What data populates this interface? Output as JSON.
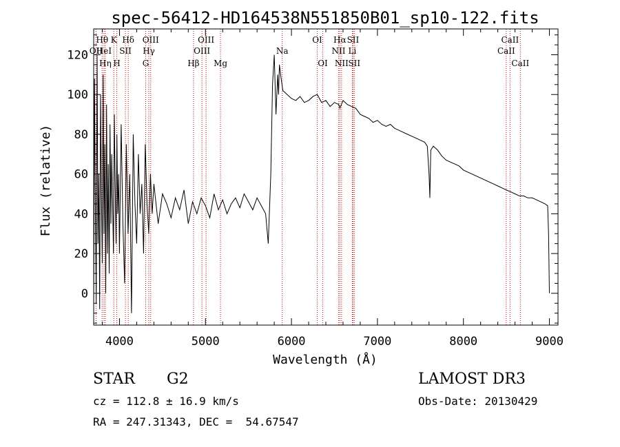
{
  "chart_data": {
    "type": "line",
    "title": "spec-56412-HD164538N551850B01_sp10-122.fits",
    "xlabel": "Wavelength (Å)",
    "ylabel": "Flux (relative)",
    "xlim": [
      3700,
      9100
    ],
    "ylim": [
      -16,
      133
    ],
    "xticks": [
      4000,
      5000,
      6000,
      7000,
      8000,
      9000
    ],
    "yticks": [
      0,
      20,
      40,
      60,
      80,
      100,
      120
    ],
    "line_color": "#000000",
    "marker_color": "#cc0000",
    "series": [
      {
        "x": [
          3700,
          3710,
          3720,
          3730,
          3740,
          3750,
          3760,
          3770,
          3780,
          3790,
          3800,
          3810,
          3820,
          3830,
          3840,
          3850,
          3860,
          3870,
          3880,
          3890,
          3900,
          3910,
          3920,
          3930,
          3940,
          3950,
          3960,
          3970,
          3980,
          3990,
          4000,
          4020,
          4040,
          4060,
          4080,
          4100,
          4120,
          4140,
          4160,
          4180,
          4200,
          4220,
          4240,
          4260,
          4280,
          4300,
          4320,
          4340,
          4360,
          4380,
          4400,
          4450,
          4500,
          4550,
          4600,
          4650,
          4700,
          4750,
          4800,
          4850,
          4900,
          4950,
          5000,
          5050,
          5100,
          5150,
          5200,
          5250,
          5300,
          5350,
          5400,
          5450,
          5500,
          5550,
          5600,
          5650,
          5700,
          5730,
          5760,
          5780,
          5800,
          5820,
          5840,
          5850,
          5860,
          5880,
          5900,
          5950,
          6000,
          6050,
          6100,
          6150,
          6200,
          6250,
          6300,
          6350,
          6400,
          6450,
          6500,
          6550,
          6563,
          6600,
          6650,
          6700,
          6750,
          6800,
          6850,
          6900,
          6950,
          7000,
          7050,
          7100,
          7150,
          7200,
          7250,
          7300,
          7350,
          7400,
          7450,
          7500,
          7550,
          7580,
          7600,
          7610,
          7620,
          7650,
          7700,
          7750,
          7800,
          7850,
          7900,
          7950,
          8000,
          8050,
          8100,
          8150,
          8200,
          8250,
          8300,
          8350,
          8400,
          8450,
          8500,
          8550,
          8600,
          8650,
          8700,
          8750,
          8800,
          8850,
          8900,
          8950,
          8980,
          8990,
          9000
        ],
        "y": [
          -10,
          108,
          40,
          -5,
          120,
          25,
          60,
          -8,
          100,
          50,
          15,
          110,
          30,
          75,
          0,
          95,
          20,
          65,
          10,
          85,
          35,
          70,
          45,
          20,
          90,
          55,
          25,
          80,
          40,
          60,
          20,
          85,
          35,
          5,
          75,
          30,
          60,
          -10,
          80,
          45,
          25,
          70,
          40,
          55,
          20,
          75,
          45,
          30,
          60,
          40,
          55,
          35,
          50,
          45,
          38,
          48,
          42,
          52,
          35,
          46,
          40,
          48,
          44,
          38,
          50,
          42,
          47,
          40,
          45,
          48,
          43,
          50,
          46,
          42,
          48,
          44,
          40,
          25,
          60,
          105,
          120,
          90,
          110,
          100,
          115,
          108,
          102,
          100,
          98,
          97,
          99,
          96,
          97,
          99,
          100,
          96,
          97,
          94,
          96,
          95,
          93,
          97,
          95,
          94,
          93,
          90,
          89,
          88,
          86,
          87,
          85,
          84,
          85,
          83,
          82,
          81,
          80,
          79,
          78,
          77,
          76,
          74,
          60,
          48,
          72,
          74,
          72,
          69,
          67,
          66,
          65,
          64,
          62,
          61,
          60,
          59,
          58,
          57,
          56,
          55,
          54,
          53,
          52,
          51,
          50,
          49,
          49,
          48,
          48,
          47,
          46,
          45,
          44,
          30,
          0
        ]
      }
    ],
    "lines": [
      {
        "name": "Hθ",
        "x": 3798,
        "row": 0
      },
      {
        "name": "OII",
        "x": 3727,
        "row": 1
      },
      {
        "name": "HeI",
        "x": 3820,
        "row": 1
      },
      {
        "name": "Hη",
        "x": 3835,
        "row": 2
      },
      {
        "name": "K",
        "x": 3934,
        "row": 0
      },
      {
        "name": "SII",
        "x": 4069,
        "row": 1
      },
      {
        "name": "H",
        "x": 3969,
        "row": 2
      },
      {
        "name": "Hδ",
        "x": 4102,
        "row": 0
      },
      {
        "name": "OIII",
        "x": 4363,
        "row": 0
      },
      {
        "name": "Hγ",
        "x": 4341,
        "row": 1
      },
      {
        "name": "G",
        "x": 4305,
        "row": 2
      },
      {
        "name": "Hβ",
        "x": 4861,
        "row": 2
      },
      {
        "name": "OIII",
        "x": 5007,
        "row": 0
      },
      {
        "name": "OIII",
        "x": 4959,
        "row": 1
      },
      {
        "name": "Mg",
        "x": 5175,
        "row": 2
      },
      {
        "name": "Na",
        "x": 5893,
        "row": 1
      },
      {
        "name": "OI",
        "x": 6300,
        "row": 0
      },
      {
        "name": "OI",
        "x": 6364,
        "row": 2
      },
      {
        "name": "Hα",
        "x": 6563,
        "row": 0
      },
      {
        "name": "NII",
        "x": 6548,
        "row": 1
      },
      {
        "name": "NII",
        "x": 6583,
        "row": 2
      },
      {
        "name": "SII",
        "x": 6716,
        "row": 0
      },
      {
        "name": "Li",
        "x": 6708,
        "row": 1
      },
      {
        "name": "SII",
        "x": 6731,
        "row": 2
      },
      {
        "name": "CaII",
        "x": 8542,
        "row": 0
      },
      {
        "name": "CaII",
        "x": 8498,
        "row": 1
      },
      {
        "name": "CaII",
        "x": 8662,
        "row": 2
      }
    ]
  },
  "info": {
    "object_type": "STAR",
    "subclass": "G2",
    "survey": "LAMOST DR3",
    "cz": "cz = 112.8 ± 16.9 km/s",
    "obs_date": "Obs-Date: 20130429",
    "coords": "RA = 247.31343, DEC =  54.67547"
  }
}
